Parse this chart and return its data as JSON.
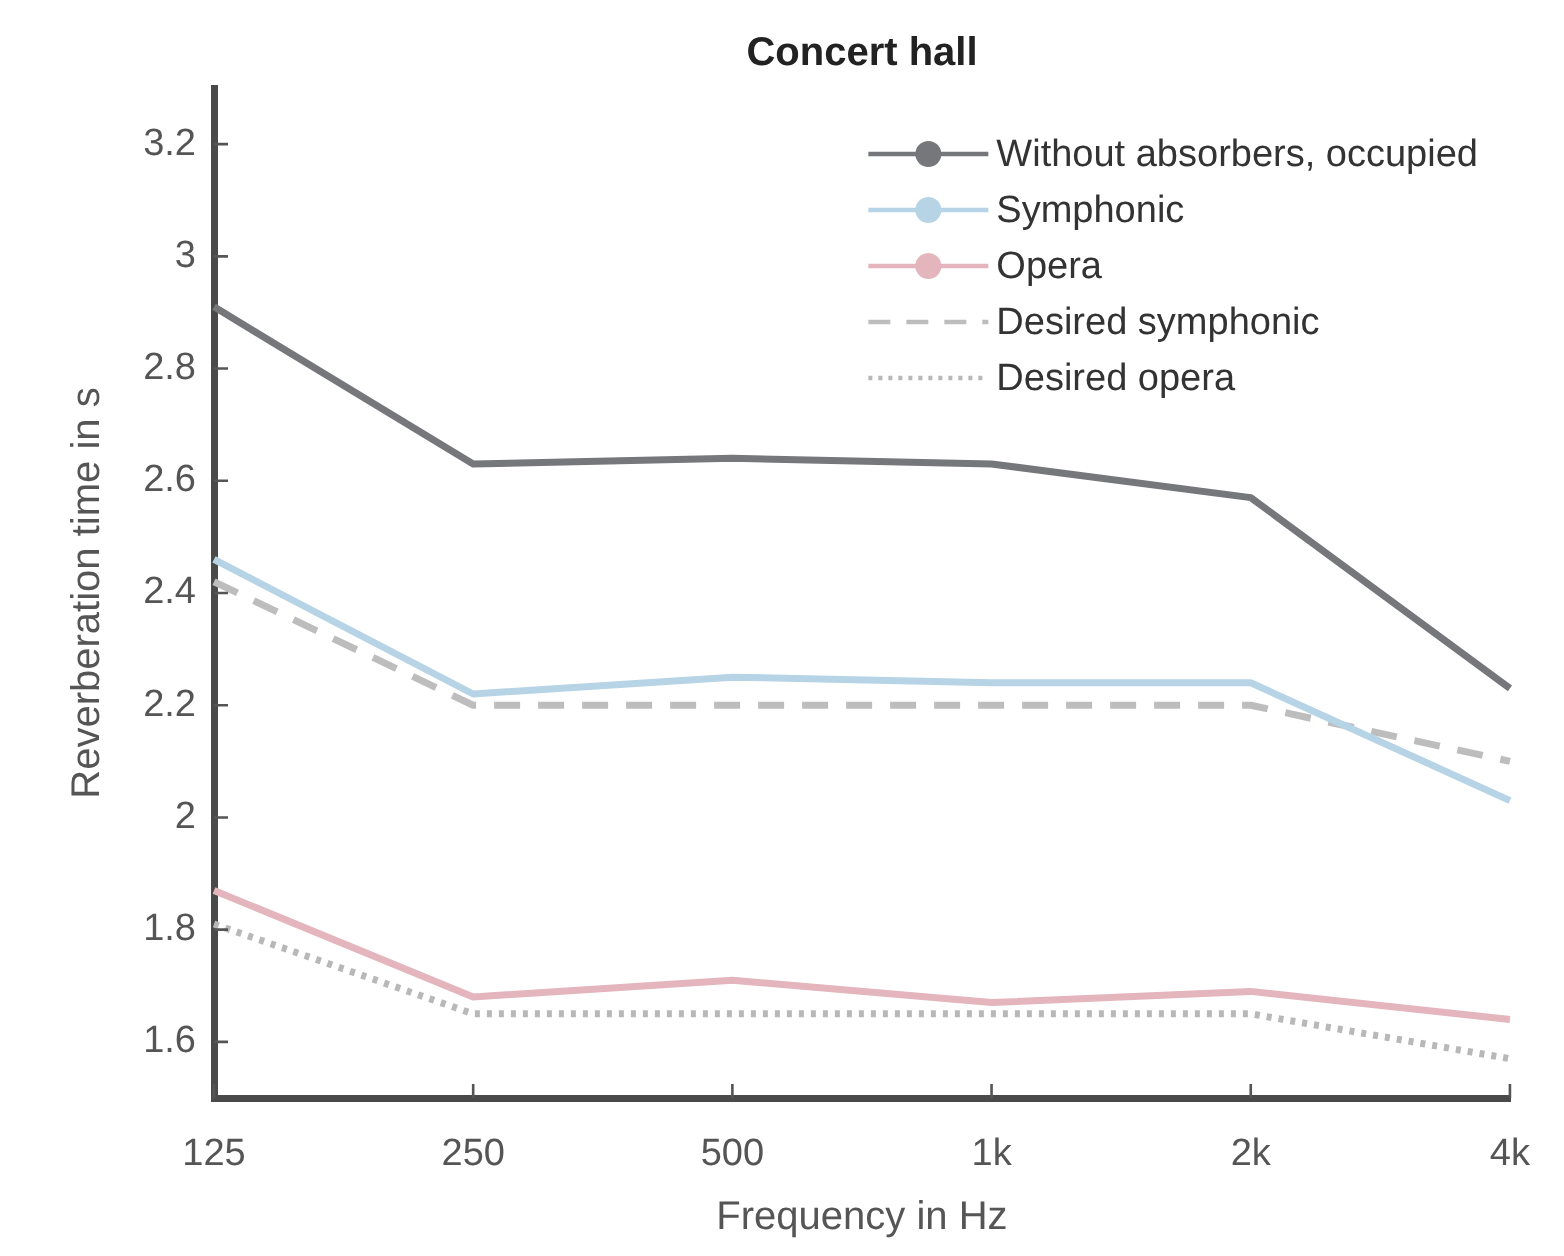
{
  "chart_data": {
    "type": "line",
    "title": "Concert hall",
    "xlabel": "Frequency in Hz",
    "ylabel": "Reverberation time in s",
    "categories": [
      "125",
      "250",
      "500",
      "1k",
      "2k",
      "4k"
    ],
    "series": [
      {
        "name": "Without absorbers, occupied",
        "color": "#76777b",
        "values": [
          2.91,
          2.63,
          2.64,
          2.63,
          2.57,
          2.23
        ]
      },
      {
        "name": "Symphonic",
        "color": "#b7d4e6",
        "values": [
          2.46,
          2.22,
          2.25,
          2.24,
          2.24,
          2.03
        ]
      },
      {
        "name": "Opera",
        "color": "#e4b5bd",
        "values": [
          1.87,
          1.68,
          1.71,
          1.67,
          1.69,
          1.64
        ]
      },
      {
        "name": "Desired symphonic",
        "color": "#bdbdbd",
        "line_style": "dashed",
        "values": [
          2.42,
          2.2,
          2.2,
          2.2,
          2.2,
          2.1
        ]
      },
      {
        "name": "Desired opera",
        "color": "#b8b8b8",
        "line_style": "dotted",
        "values": [
          1.81,
          1.65,
          1.65,
          1.65,
          1.65,
          1.57
        ]
      }
    ],
    "ylim": [
      1.5,
      3.3
    ],
    "yticks": [
      1.6,
      1.8,
      2,
      2.2,
      2.4,
      2.6,
      2.8,
      3,
      3.2
    ],
    "grid": false,
    "legend": "top right"
  }
}
